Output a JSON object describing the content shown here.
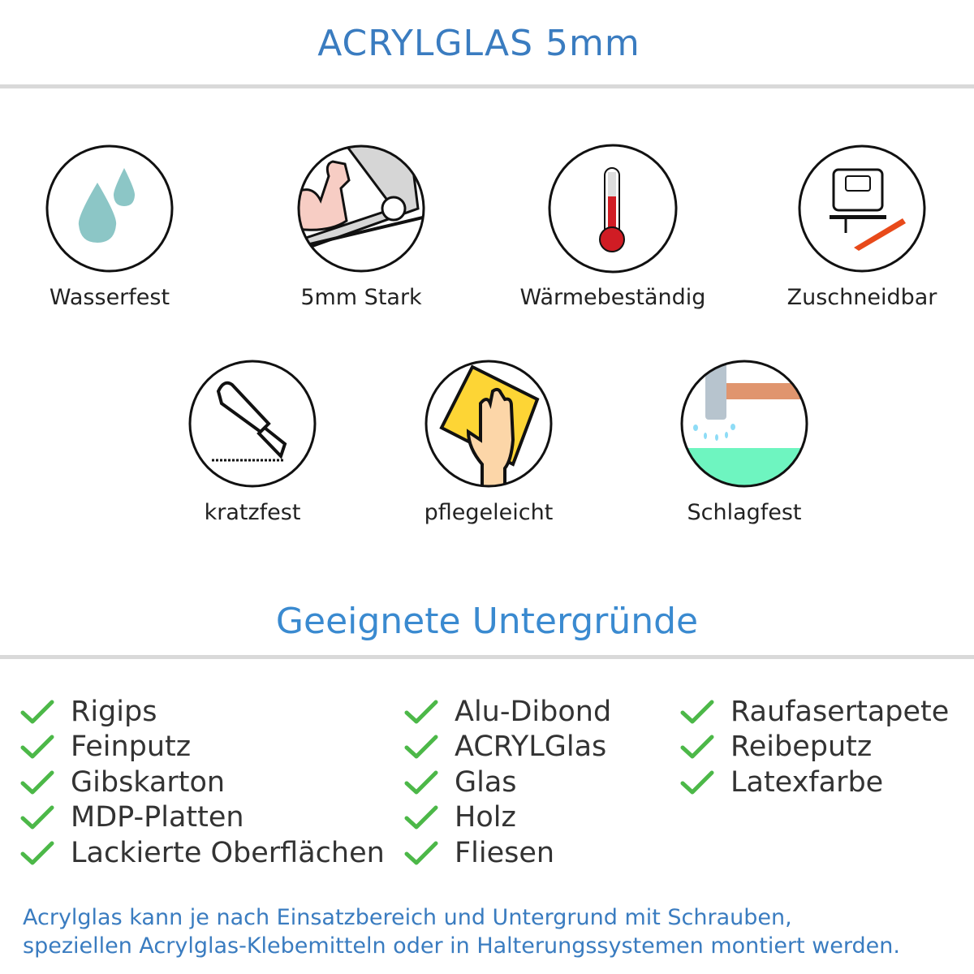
{
  "header": {
    "title": "ACRYLGLAS 5mm"
  },
  "features": [
    {
      "label": "Wasserfest",
      "icon": "water-drops-icon"
    },
    {
      "label": "5mm Stark",
      "icon": "strong-arm-icon"
    },
    {
      "label": "Wärmebeständig",
      "icon": "thermometer-icon"
    },
    {
      "label": "Zuschneidbar",
      "icon": "jigsaw-cutter-icon"
    },
    {
      "label": "kratzfest",
      "icon": "utility-knife-icon"
    },
    {
      "label": "pflegeleicht",
      "icon": "hand-cloth-icon"
    },
    {
      "label": "Schlagfest",
      "icon": "hammer-icon"
    }
  ],
  "surfaces": {
    "title": "Geeignete Untergründe",
    "check_color": "#4cb848",
    "columns": [
      [
        "Rigips",
        "Feinputz",
        "Gibskarton",
        "MDP-Platten",
        "Lackierte Oberflächen"
      ],
      [
        "Alu-Dibond",
        "ACRYLGlas",
        "Glas",
        "Holz",
        "Fliesen"
      ],
      [
        "Raufasertapete",
        "Reibeputz",
        "Latexfarbe"
      ]
    ]
  },
  "footer": {
    "line1": "Acrylglas kann je nach Einsatzbereich und Untergrund mit Schrauben,",
    "line2": "speziellen Acrylglas-Klebemitteln oder in Halterungssystemen montiert werden."
  }
}
